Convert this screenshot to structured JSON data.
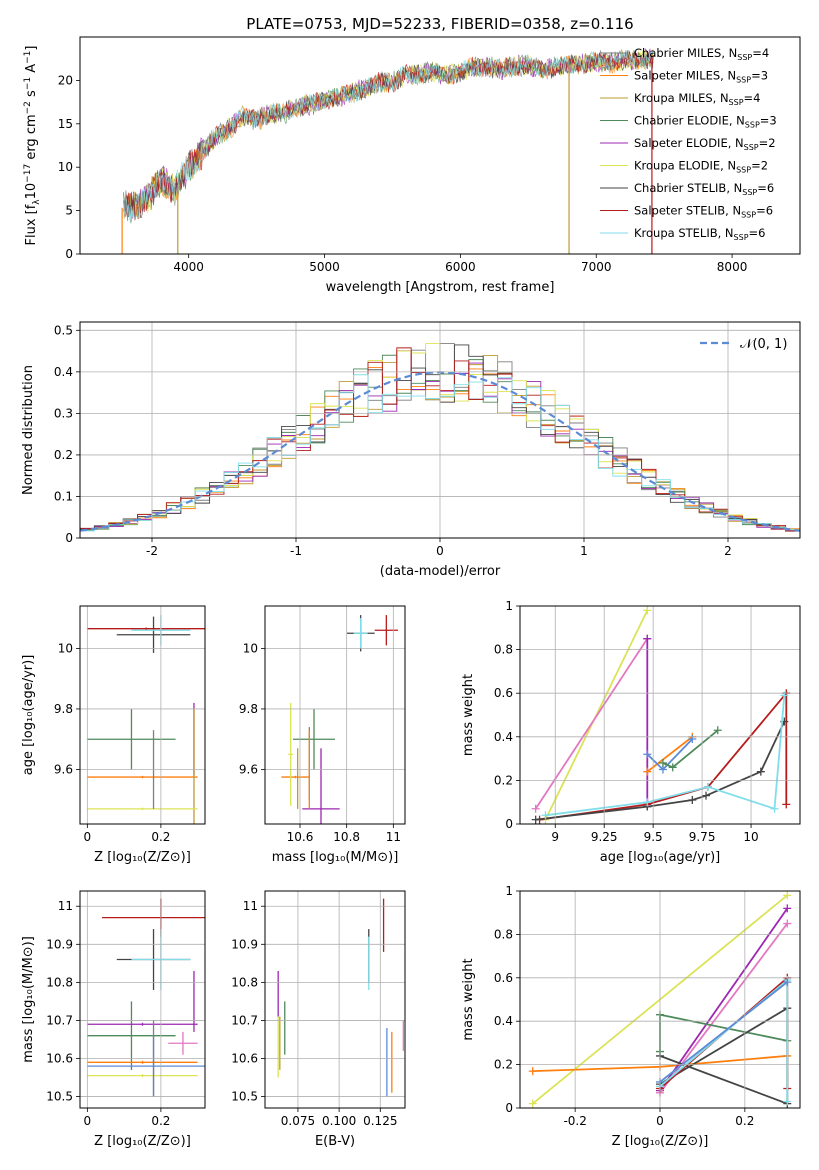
{
  "figure_title": "PLATE=0753, MJD=52233, FIBERID=0358, z=0.116",
  "colors": {
    "chabrier_miles": "#7f7f7f",
    "salpeter_miles": "#ff7f0e",
    "kroupa_miles": "#bcbd22",
    "chabrier_elodie": "#2e7d32",
    "salpeter_elodie": "#9c27b0",
    "kroupa_elodie": "#e6e62a",
    "chabrier_stelib": "#333333",
    "salpeter_stelib": "#b71c1c",
    "kroupa_stelib": "#80deea",
    "normal_curve": "#5b8bd6",
    "grid": "#b0b0b0"
  },
  "models": [
    {
      "key": "cm",
      "label_pre": "Chabrier MILES, N",
      "label_post": "=4",
      "color": "#7f7f7f"
    },
    {
      "key": "sm",
      "label_pre": "Salpeter MILES, N",
      "label_post": "=3",
      "color": "#ff7f0e"
    },
    {
      "key": "km",
      "label_pre": "Kroupa MILES, N",
      "label_post": "=4",
      "color": "#bf9b30"
    },
    {
      "key": "ce",
      "label_pre": "Chabrier ELODIE, N",
      "label_post": "=3",
      "color": "#4f8a5b"
    },
    {
      "key": "se",
      "label_pre": "Salpeter ELODIE, N",
      "label_post": "=2",
      "color": "#9c27b0"
    },
    {
      "key": "ke",
      "label_pre": "Kroupa ELODIE, N",
      "label_post": "=2",
      "color": "#dce356"
    },
    {
      "key": "cs",
      "label_pre": "Chabrier STELIB, N",
      "label_post": "=6",
      "color": "#444444"
    },
    {
      "key": "ss",
      "label_pre": "Salpeter STELIB, N",
      "label_post": "=6",
      "color": "#b71c1c"
    },
    {
      "key": "ks",
      "label_pre": "Kroupa STELIB, N",
      "label_post": "=6",
      "color": "#80deea"
    }
  ],
  "legend_sub": "SSP",
  "chart_data": [
    {
      "id": "spectrum",
      "type": "line",
      "xlabel": "wavelength [Angstrom, rest frame]",
      "ylabel_pre": "Flux [f",
      "ylabel_mid": "λ",
      "ylabel_post": "10",
      "ylabel_exp": "−17",
      "ylabel_unit": " erg cm",
      "ylabel_exp2": "−2",
      "ylabel_s": " s",
      "ylabel_exp3": "−1",
      "ylabel_a": " A",
      "ylabel_exp4": "−1",
      "ylabel_end": "]",
      "xlim": [
        3200,
        8500
      ],
      "ylim": [
        0,
        25
      ],
      "xticks": [
        4000,
        5000,
        6000,
        7000,
        8000
      ],
      "yticks": [
        0,
        5,
        10,
        15,
        20
      ],
      "continuum": {
        "x": [
          3500,
          3600,
          3700,
          3800,
          3900,
          4000,
          4100,
          4200,
          4300,
          4400,
          4500,
          4600,
          4700,
          4800,
          4900,
          5000,
          5100,
          5200,
          5300,
          5400,
          5500,
          5600,
          5700,
          5800,
          5900,
          6000,
          6100,
          6200,
          6300,
          6400,
          6500,
          6600,
          6700,
          6800,
          6900,
          7000,
          7100,
          7200,
          7300,
          7400
        ],
        "y": [
          5.3,
          5.5,
          6.5,
          8.5,
          7.5,
          10.0,
          11.8,
          13.5,
          14.5,
          15.8,
          15.4,
          16.2,
          16.2,
          17.0,
          17.2,
          17.8,
          18.0,
          18.6,
          19.0,
          19.8,
          19.8,
          20.6,
          20.8,
          21.0,
          20.6,
          21.0,
          21.5,
          21.6,
          21.3,
          21.7,
          21.7,
          21.2,
          21.5,
          21.8,
          21.9,
          22.2,
          22.0,
          22.3,
          22.3,
          22.6
        ]
      },
      "spikes": [
        {
          "x": 3510,
          "model": "sm"
        },
        {
          "x": 3920,
          "model": "km"
        },
        {
          "x": 6800,
          "model": "km"
        },
        {
          "x": 7410,
          "model": "ss"
        }
      ]
    },
    {
      "id": "residual_hist",
      "type": "area",
      "xlabel": "(data-model)/error",
      "ylabel": "Normed distribution",
      "xlim": [
        -2.5,
        2.5
      ],
      "ylim": [
        0,
        0.52
      ],
      "xticks": [
        -2,
        -1,
        0,
        1,
        2
      ],
      "yticks": [
        0.0,
        0.1,
        0.2,
        0.3,
        0.4,
        0.5
      ],
      "legend_label": "𝒩(0, 1)",
      "bin_width": 0.1
    },
    {
      "id": "z_age",
      "type": "scatter",
      "xlabel": "Z [log₁₀(Z/Z⊙)]",
      "ylabel": "age  [log₁₀(age/yr)]",
      "xlim": [
        -0.02,
        0.32
      ],
      "ylim": [
        9.42,
        10.14
      ],
      "xticks": [
        0.0,
        0.2
      ],
      "yticks": [
        9.6,
        9.8,
        10.0
      ],
      "points": [
        {
          "m": "ss",
          "x": 0.16,
          "xe": 0.16,
          "y": 10.065,
          "ye": 0.0
        },
        {
          "m": "cs",
          "x": 0.18,
          "xe": 0.1,
          "y": 10.045,
          "ye": 0.06
        },
        {
          "m": "ks",
          "x": 0.2,
          "xe": 0.08,
          "y": 10.06,
          "ye": 0.05
        },
        {
          "m": "ce",
          "x": 0.12,
          "xe": 0.12,
          "y": 9.7,
          "ye": 0.1
        },
        {
          "m": "se",
          "x": 0.29,
          "xe": 0.0,
          "y": 9.7,
          "ye": 0.12
        },
        {
          "m": "sm",
          "x": 0.15,
          "xe": 0.15,
          "y": 9.575,
          "ye": 0.0
        },
        {
          "m": "km",
          "x": 0.29,
          "xe": 0.0,
          "y": 9.6,
          "ye": 0.2
        },
        {
          "m": "ke",
          "x": 0.15,
          "xe": 0.15,
          "y": 9.47,
          "ye": 0.0
        },
        {
          "m": "cm",
          "x": 0.18,
          "xe": 0.0,
          "y": 9.6,
          "ye": 0.13
        }
      ]
    },
    {
      "id": "mass_age",
      "type": "scatter",
      "xlabel": "mass [log₁₀(M/M⊙)]",
      "ylabel": "",
      "xlim": [
        10.45,
        11.05
      ],
      "ylim": [
        9.42,
        10.14
      ],
      "xticks": [
        10.6,
        10.8,
        11.0
      ],
      "yticks": [
        9.6,
        9.8,
        10.0
      ],
      "points": [
        {
          "m": "ss",
          "x": 10.97,
          "xe": 0.05,
          "y": 10.06,
          "ye": 0.05
        },
        {
          "m": "cs",
          "x": 10.86,
          "xe": 0.06,
          "y": 10.05,
          "ye": 0.06
        },
        {
          "m": "ks",
          "x": 10.86,
          "xe": 0.03,
          "y": 10.05,
          "ye": 0.05
        },
        {
          "m": "ce",
          "x": 10.66,
          "xe": 0.09,
          "y": 9.7,
          "ye": 0.1
        },
        {
          "m": "se",
          "x": 10.69,
          "xe": 0.08,
          "y": 9.47,
          "ye": 0.2
        },
        {
          "m": "sm",
          "x": 10.58,
          "xe": 0.06,
          "y": 9.575,
          "ye": 0.0
        },
        {
          "m": "km",
          "x": 10.59,
          "xe": 0.0,
          "y": 9.57,
          "ye": 0.1
        },
        {
          "m": "ke",
          "x": 10.56,
          "xe": 0.01,
          "y": 9.65,
          "ye": 0.17
        },
        {
          "m": "cm",
          "x": 10.64,
          "xe": 0.0,
          "y": 9.62,
          "ye": 0.12
        },
        {
          "m": "sm2",
          "x": 10.64,
          "xe": 0.0,
          "y": 9.6,
          "ye": 0.13
        }
      ]
    },
    {
      "id": "age_weight",
      "type": "line",
      "xlabel": "age  [log₁₀(age/yr)]",
      "ylabel": "mass weight",
      "xlim": [
        8.82,
        10.25
      ],
      "ylim": [
        0,
        1.0
      ],
      "xticks": [
        9.0,
        9.25,
        9.5,
        9.75,
        10.0
      ],
      "yticks": [
        0.0,
        0.2,
        0.4,
        0.6,
        0.8,
        1.0
      ],
      "series": [
        {
          "m": "ke",
          "x": [
            8.95,
            9.47
          ],
          "y": [
            0.02,
            0.98
          ]
        },
        {
          "m": "pk",
          "x": [
            8.9,
            9.47
          ],
          "y": [
            0.07,
            0.85
          ]
        },
        {
          "m": "se",
          "x": [
            9.47,
            9.47
          ],
          "y": [
            0.85,
            0.08
          ]
        },
        {
          "m": "sm",
          "x": [
            9.47,
            9.7
          ],
          "y": [
            0.24,
            0.4
          ]
        },
        {
          "m": "bl",
          "x": [
            9.47,
            9.55,
            9.7
          ],
          "y": [
            0.32,
            0.25,
            0.39
          ]
        },
        {
          "m": "ce",
          "x": [
            9.55,
            9.6,
            9.83
          ],
          "y": [
            0.28,
            0.26,
            0.43
          ]
        },
        {
          "m": "ss",
          "x": [
            8.92,
            9.47,
            9.78,
            10.18,
            10.18
          ],
          "y": [
            0.02,
            0.09,
            0.17,
            0.6,
            0.09
          ]
        },
        {
          "m": "cs",
          "x": [
            8.9,
            9.47,
            9.7,
            9.77,
            10.05,
            10.17
          ],
          "y": [
            0.02,
            0.08,
            0.11,
            0.13,
            0.24,
            0.47
          ]
        },
        {
          "m": "ks",
          "x": [
            8.95,
            9.47,
            9.78,
            10.12,
            10.17
          ],
          "y": [
            0.04,
            0.1,
            0.17,
            0.07,
            0.59
          ]
        }
      ]
    },
    {
      "id": "z_mass",
      "type": "scatter",
      "xlabel": "Z [log₁₀(Z/Z⊙)]",
      "ylabel": "mass [log₁₀(M/M⊙)]",
      "xlim": [
        -0.02,
        0.32
      ],
      "ylim": [
        10.47,
        11.04
      ],
      "xticks": [
        0.0,
        0.2
      ],
      "yticks": [
        10.5,
        10.6,
        10.7,
        10.8,
        10.9,
        11.0
      ],
      "points": [
        {
          "m": "ss",
          "x": 0.2,
          "xe": 0.16,
          "y": 10.97,
          "ye": 0.05
        },
        {
          "m": "cs",
          "x": 0.18,
          "xe": 0.1,
          "y": 10.86,
          "ye": 0.08
        },
        {
          "m": "ks",
          "x": 0.2,
          "xe": 0.08,
          "y": 10.86,
          "ye": 0.08
        },
        {
          "m": "ce",
          "x": 0.12,
          "xe": 0.12,
          "y": 10.66,
          "ye": 0.09
        },
        {
          "m": "se",
          "x": 0.15,
          "xe": 0.15,
          "y": 10.69,
          "ye": 0.0
        },
        {
          "m": "se2",
          "x": 0.29,
          "xe": 0.0,
          "y": 10.75,
          "ye": 0.08
        },
        {
          "m": "pk",
          "x": 0.26,
          "xe": 0.04,
          "y": 10.64,
          "ye": 0.03
        },
        {
          "m": "sm",
          "x": 0.15,
          "xe": 0.15,
          "y": 10.59,
          "ye": 0.0
        },
        {
          "m": "bl",
          "x": 0.18,
          "xe": 0.18,
          "y": 10.58,
          "ye": 0.08
        },
        {
          "m": "ke",
          "x": 0.15,
          "xe": 0.15,
          "y": 10.555,
          "ye": 0.0
        },
        {
          "m": "cm",
          "x": 0.18,
          "xe": 0.0,
          "y": 10.6,
          "ye": 0.1
        }
      ]
    },
    {
      "id": "ebv_mass",
      "type": "scatter",
      "xlabel": "E(B-V)",
      "ylabel": "",
      "xlim": [
        0.055,
        0.14
      ],
      "ylim": [
        10.47,
        11.04
      ],
      "xticks": [
        0.075,
        0.1,
        0.125
      ],
      "xticklabels": [
        "0.075",
        "0.100",
        "0.125"
      ],
      "yticks": [
        10.5,
        10.6,
        10.7,
        10.8,
        10.9,
        11.0
      ],
      "points": [
        {
          "m": "ss",
          "x": 0.127,
          "ye": 0.07,
          "y": 10.95
        },
        {
          "m": "cs",
          "x": 0.118,
          "ye": 0.07,
          "y": 10.87
        },
        {
          "m": "ks",
          "x": 0.118,
          "ye": 0.07,
          "y": 10.85
        },
        {
          "m": "se",
          "x": 0.063,
          "ye": 0.06,
          "y": 10.77
        },
        {
          "m": "ce",
          "x": 0.067,
          "ye": 0.07,
          "y": 10.68
        },
        {
          "m": "km",
          "x": 0.064,
          "ye": 0.07,
          "y": 10.64
        },
        {
          "m": "ke",
          "x": 0.063,
          "ye": 0.08,
          "y": 10.63
        },
        {
          "m": "bl",
          "x": 0.129,
          "ye": 0.09,
          "y": 10.59
        },
        {
          "m": "sm",
          "x": 0.132,
          "ye": 0.08,
          "y": 10.59
        },
        {
          "m": "pk",
          "x": 0.139,
          "ye": 0.04,
          "y": 10.66
        }
      ]
    },
    {
      "id": "z_weight",
      "type": "line",
      "xlabel": "Z [log₁₀(Z/Z⊙)]",
      "ylabel": "mass weight",
      "xlim": [
        -0.33,
        0.33
      ],
      "ylim": [
        0,
        1.0
      ],
      "xticks": [
        -0.2,
        0.0,
        0.2
      ],
      "yticks": [
        0.0,
        0.2,
        0.4,
        0.6,
        0.8,
        1.0
      ],
      "series": [
        {
          "m": "ke",
          "x": [
            -0.3,
            0.3
          ],
          "y": [
            0.02,
            0.98
          ]
        },
        {
          "m": "sm",
          "x": [
            -0.3,
            0.0,
            0.3
          ],
          "y": [
            0.17,
            0.19,
            0.24
          ]
        },
        {
          "m": "se",
          "x": [
            0.0,
            0.3
          ],
          "y": [
            0.08,
            0.92
          ]
        },
        {
          "m": "pk",
          "x": [
            0.0,
            0.3
          ],
          "y": [
            0.07,
            0.85
          ]
        },
        {
          "m": "ce",
          "x": [
            0.0,
            0.0,
            0.3
          ],
          "y": [
            0.26,
            0.43,
            0.31
          ]
        },
        {
          "m": "cs",
          "x": [
            0.0,
            0.3,
            0.3,
            0.0
          ],
          "y": [
            0.24,
            0.02,
            0.46,
            0.11
          ]
        },
        {
          "m": "ss",
          "x": [
            0.0,
            0.3,
            0.3
          ],
          "y": [
            0.09,
            0.6,
            0.09
          ]
        },
        {
          "m": "ks",
          "x": [
            0.0,
            0.3,
            0.3
          ],
          "y": [
            0.1,
            0.59,
            0.03
          ]
        },
        {
          "m": "bl",
          "x": [
            0.0,
            0.3
          ],
          "y": [
            0.12,
            0.58
          ]
        }
      ]
    }
  ],
  "extra_colors": {
    "pk": "#e377c2",
    "bl": "#5b8bd6",
    "se2": "#9c27b0",
    "sm2": "#ff7f0e"
  }
}
